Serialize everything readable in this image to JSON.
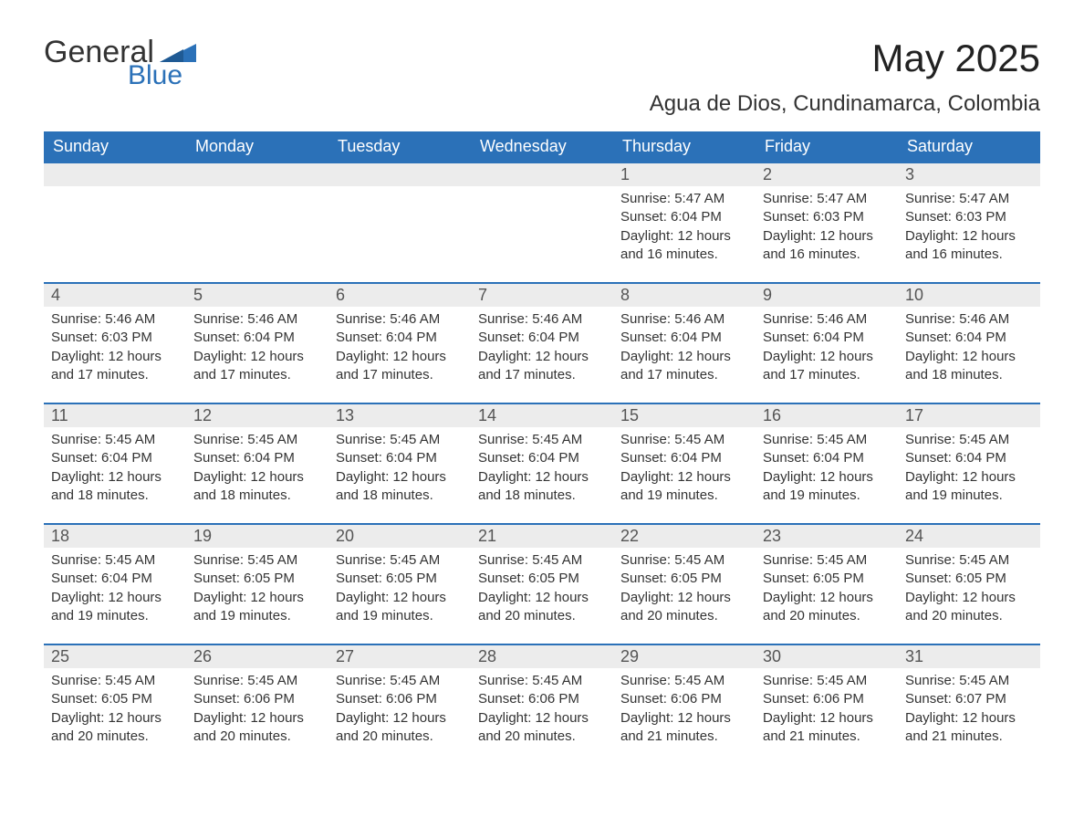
{
  "logo": {
    "text1": "General",
    "text2": "Blue",
    "tri_color": "#2b71b8"
  },
  "title": "May 2025",
  "location": "Agua de Dios, Cundinamarca, Colombia",
  "colors": {
    "header_bg": "#2b71b8",
    "header_text": "#ffffff",
    "daynum_bg": "#ececec",
    "row_border": "#2b71b8",
    "body_text": "#333333"
  },
  "day_headers": [
    "Sunday",
    "Monday",
    "Tuesday",
    "Wednesday",
    "Thursday",
    "Friday",
    "Saturday"
  ],
  "labels": {
    "sunrise": "Sunrise:",
    "sunset": "Sunset:",
    "daylight": "Daylight:"
  },
  "weeks": [
    [
      {
        "n": "",
        "empty": true
      },
      {
        "n": "",
        "empty": true
      },
      {
        "n": "",
        "empty": true
      },
      {
        "n": "",
        "empty": true
      },
      {
        "n": "1",
        "sunrise": "5:47 AM",
        "sunset": "6:04 PM",
        "daylight": "12 hours and 16 minutes."
      },
      {
        "n": "2",
        "sunrise": "5:47 AM",
        "sunset": "6:03 PM",
        "daylight": "12 hours and 16 minutes."
      },
      {
        "n": "3",
        "sunrise": "5:47 AM",
        "sunset": "6:03 PM",
        "daylight": "12 hours and 16 minutes."
      }
    ],
    [
      {
        "n": "4",
        "sunrise": "5:46 AM",
        "sunset": "6:03 PM",
        "daylight": "12 hours and 17 minutes."
      },
      {
        "n": "5",
        "sunrise": "5:46 AM",
        "sunset": "6:04 PM",
        "daylight": "12 hours and 17 minutes."
      },
      {
        "n": "6",
        "sunrise": "5:46 AM",
        "sunset": "6:04 PM",
        "daylight": "12 hours and 17 minutes."
      },
      {
        "n": "7",
        "sunrise": "5:46 AM",
        "sunset": "6:04 PM",
        "daylight": "12 hours and 17 minutes."
      },
      {
        "n": "8",
        "sunrise": "5:46 AM",
        "sunset": "6:04 PM",
        "daylight": "12 hours and 17 minutes."
      },
      {
        "n": "9",
        "sunrise": "5:46 AM",
        "sunset": "6:04 PM",
        "daylight": "12 hours and 17 minutes."
      },
      {
        "n": "10",
        "sunrise": "5:46 AM",
        "sunset": "6:04 PM",
        "daylight": "12 hours and 18 minutes."
      }
    ],
    [
      {
        "n": "11",
        "sunrise": "5:45 AM",
        "sunset": "6:04 PM",
        "daylight": "12 hours and 18 minutes."
      },
      {
        "n": "12",
        "sunrise": "5:45 AM",
        "sunset": "6:04 PM",
        "daylight": "12 hours and 18 minutes."
      },
      {
        "n": "13",
        "sunrise": "5:45 AM",
        "sunset": "6:04 PM",
        "daylight": "12 hours and 18 minutes."
      },
      {
        "n": "14",
        "sunrise": "5:45 AM",
        "sunset": "6:04 PM",
        "daylight": "12 hours and 18 minutes."
      },
      {
        "n": "15",
        "sunrise": "5:45 AM",
        "sunset": "6:04 PM",
        "daylight": "12 hours and 19 minutes."
      },
      {
        "n": "16",
        "sunrise": "5:45 AM",
        "sunset": "6:04 PM",
        "daylight": "12 hours and 19 minutes."
      },
      {
        "n": "17",
        "sunrise": "5:45 AM",
        "sunset": "6:04 PM",
        "daylight": "12 hours and 19 minutes."
      }
    ],
    [
      {
        "n": "18",
        "sunrise": "5:45 AM",
        "sunset": "6:04 PM",
        "daylight": "12 hours and 19 minutes."
      },
      {
        "n": "19",
        "sunrise": "5:45 AM",
        "sunset": "6:05 PM",
        "daylight": "12 hours and 19 minutes."
      },
      {
        "n": "20",
        "sunrise": "5:45 AM",
        "sunset": "6:05 PM",
        "daylight": "12 hours and 19 minutes."
      },
      {
        "n": "21",
        "sunrise": "5:45 AM",
        "sunset": "6:05 PM",
        "daylight": "12 hours and 20 minutes."
      },
      {
        "n": "22",
        "sunrise": "5:45 AM",
        "sunset": "6:05 PM",
        "daylight": "12 hours and 20 minutes."
      },
      {
        "n": "23",
        "sunrise": "5:45 AM",
        "sunset": "6:05 PM",
        "daylight": "12 hours and 20 minutes."
      },
      {
        "n": "24",
        "sunrise": "5:45 AM",
        "sunset": "6:05 PM",
        "daylight": "12 hours and 20 minutes."
      }
    ],
    [
      {
        "n": "25",
        "sunrise": "5:45 AM",
        "sunset": "6:05 PM",
        "daylight": "12 hours and 20 minutes."
      },
      {
        "n": "26",
        "sunrise": "5:45 AM",
        "sunset": "6:06 PM",
        "daylight": "12 hours and 20 minutes."
      },
      {
        "n": "27",
        "sunrise": "5:45 AM",
        "sunset": "6:06 PM",
        "daylight": "12 hours and 20 minutes."
      },
      {
        "n": "28",
        "sunrise": "5:45 AM",
        "sunset": "6:06 PM",
        "daylight": "12 hours and 20 minutes."
      },
      {
        "n": "29",
        "sunrise": "5:45 AM",
        "sunset": "6:06 PM",
        "daylight": "12 hours and 21 minutes."
      },
      {
        "n": "30",
        "sunrise": "5:45 AM",
        "sunset": "6:06 PM",
        "daylight": "12 hours and 21 minutes."
      },
      {
        "n": "31",
        "sunrise": "5:45 AM",
        "sunset": "6:07 PM",
        "daylight": "12 hours and 21 minutes."
      }
    ]
  ]
}
